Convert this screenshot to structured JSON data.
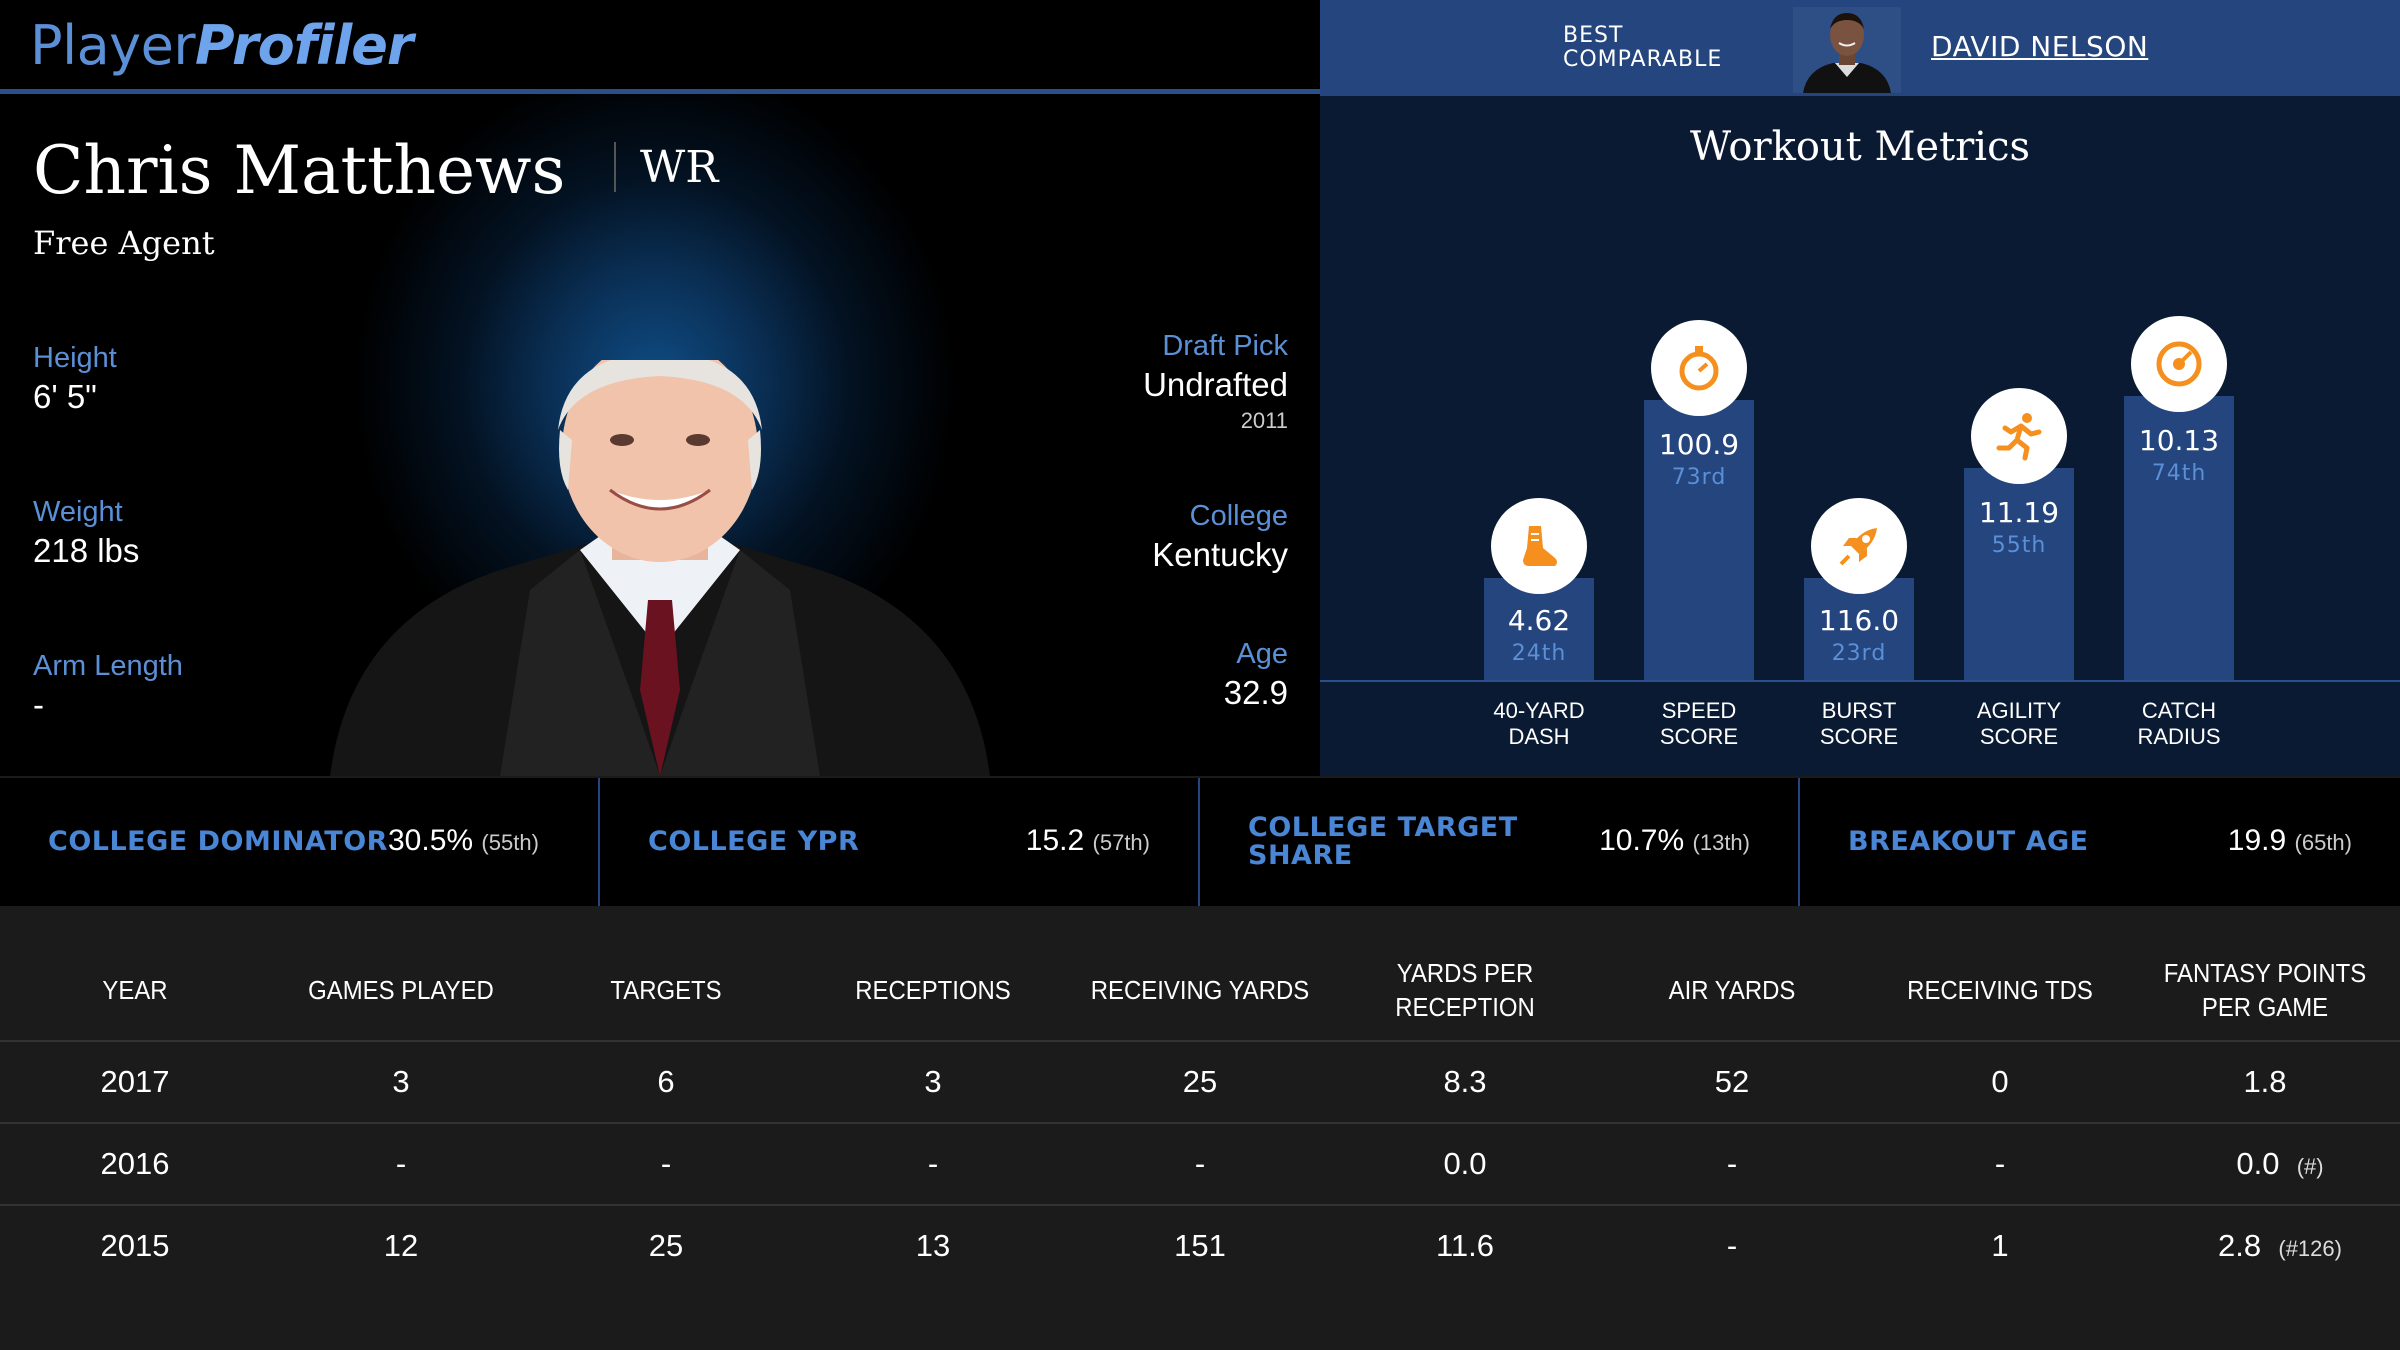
{
  "header": {
    "logo_part1": "Player",
    "logo_part2": "Profiler",
    "comparable_label_line1": "BEST",
    "comparable_label_line2": "COMPARABLE",
    "comparable_name": "DAVID NELSON"
  },
  "player": {
    "name": "Chris Matthews",
    "position": "WR",
    "status": "Free Agent",
    "height_label": "Height",
    "height": "6' 5\"",
    "weight_label": "Weight",
    "weight": "218 lbs",
    "arm_length_label": "Arm Length",
    "arm_length": "-",
    "draft_pick_label": "Draft Pick",
    "draft_pick": "Undrafted",
    "draft_year": "2011",
    "college_label": "College",
    "college": "Kentucky",
    "age_label": "Age",
    "age": "32.9"
  },
  "workout": {
    "title": "Workout Metrics",
    "metrics": [
      {
        "label_line1": "40-YARD",
        "label_line2": "DASH",
        "value": "4.62",
        "percentile": "24th",
        "icon": "running-shoe-icon"
      },
      {
        "label_line1": "SPEED",
        "label_line2": "SCORE",
        "value": "100.9",
        "percentile": "73rd",
        "icon": "stopwatch-icon"
      },
      {
        "label_line1": "BURST",
        "label_line2": "SCORE",
        "value": "116.0",
        "percentile": "23rd",
        "icon": "rocket-icon"
      },
      {
        "label_line1": "AGILITY",
        "label_line2": "SCORE",
        "value": "11.19",
        "percentile": "55th",
        "icon": "runner-icon"
      },
      {
        "label_line1": "CATCH",
        "label_line2": "RADIUS",
        "value": "10.13",
        "percentile": "74th",
        "icon": "target-icon"
      }
    ],
    "icon_color": "#f5901e"
  },
  "college_stats": [
    {
      "label": "COLLEGE DOMINATOR",
      "value": "30.5%",
      "percentile": "(55th)"
    },
    {
      "label": "COLLEGE YPR",
      "value": "15.2",
      "percentile": "(57th)"
    },
    {
      "label_line1": "COLLEGE TARGET",
      "label_line2": "SHARE",
      "value": "10.7%",
      "percentile": "(13th)"
    },
    {
      "label": "BREAKOUT AGE",
      "value": "19.9",
      "percentile": "(65th)"
    }
  ],
  "table": {
    "headers": [
      "YEAR",
      "GAMES PLAYED",
      "TARGETS",
      "RECEPTIONS",
      "RECEIVING YARDS",
      "YARDS PER RECEPTION",
      "AIR YARDS",
      "RECEIVING TDS",
      "FANTASY POINTS PER GAME"
    ],
    "rows": [
      {
        "year": "2017",
        "games": "3",
        "targets": "6",
        "receptions": "3",
        "yards": "25",
        "ypr": "8.3",
        "air_yards": "52",
        "tds": "0",
        "fppg": "1.8",
        "fppg_rank": ""
      },
      {
        "year": "2016",
        "games": "-",
        "targets": "-",
        "receptions": "-",
        "yards": "-",
        "ypr": "0.0",
        "air_yards": "-",
        "tds": "-",
        "fppg": "0.0",
        "fppg_rank": "(#)"
      },
      {
        "year": "2015",
        "games": "12",
        "targets": "25",
        "receptions": "13",
        "yards": "151",
        "ypr": "11.6",
        "air_yards": "-",
        "tds": "1",
        "fppg": "2.8",
        "fppg_rank": "(#126)"
      }
    ]
  },
  "colors": {
    "accent_blue": "#5b8fd6",
    "header_blue": "#24457d",
    "bar_blue": "#24457d",
    "icon_orange": "#f5901e"
  }
}
